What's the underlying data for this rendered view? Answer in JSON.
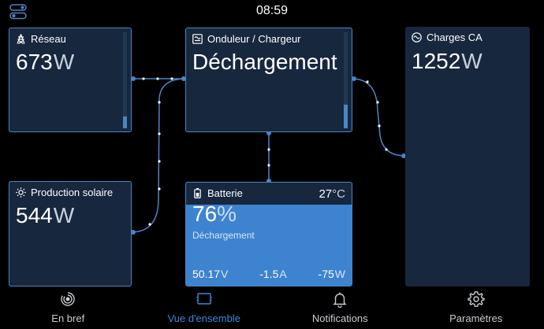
{
  "status_bar": {
    "time": "08:59"
  },
  "tiles": {
    "reseau": {
      "label": "Réseau",
      "value": "673",
      "unit": "W",
      "level": 0.12
    },
    "solar": {
      "label": "Production solaire",
      "value": "544",
      "unit": "W"
    },
    "inverter": {
      "label": "Onduleur / Chargeur",
      "state": "Déchargement",
      "level": 0.25
    },
    "battery": {
      "label": "Batterie",
      "temperature": "27",
      "temperature_unit": "°C",
      "percent": "76",
      "percent_unit": "%",
      "soc_fraction": 0.76,
      "state": "Déchargement",
      "voltage": "50.17",
      "voltage_unit": "V",
      "current": "-1.5",
      "current_unit": "A",
      "power": "-75",
      "power_unit": "W"
    },
    "ac_loads": {
      "label": "Charges CA",
      "value": "1252",
      "unit": "W"
    }
  },
  "nav": {
    "items": [
      {
        "label": "En bref",
        "icon": "gauge-icon",
        "active": false
      },
      {
        "label": "Vue d'ensemble",
        "icon": "overview-icon",
        "active": true
      },
      {
        "label": "Notifications",
        "icon": "bell-icon",
        "active": false
      },
      {
        "label": "Paramètres",
        "icon": "gear-icon",
        "active": false
      }
    ]
  },
  "colors": {
    "accent": "#4a86c6",
    "battery_fill": "#3e83cf",
    "tile_bg": "#17273d",
    "active_nav": "#3f87dd"
  }
}
